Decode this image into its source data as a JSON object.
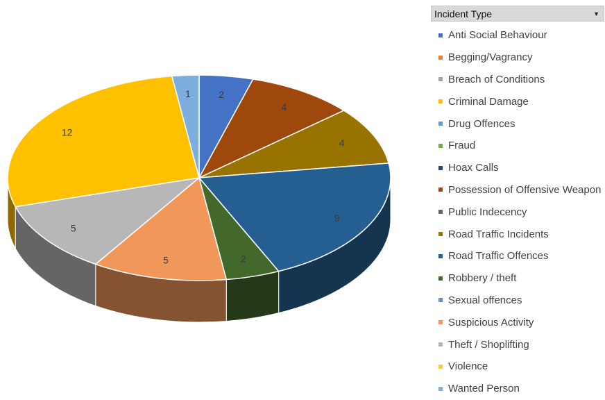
{
  "legend": {
    "title": "Incident Type",
    "items": [
      {
        "label": "Anti Social Behaviour",
        "color": "#4472c4"
      },
      {
        "label": "Begging/Vagrancy",
        "color": "#ed7d31"
      },
      {
        "label": "Breach of Conditions",
        "color": "#a5a5a5"
      },
      {
        "label": "Criminal Damage",
        "color": "#ffc000"
      },
      {
        "label": "Drug Offences",
        "color": "#5b9bd5"
      },
      {
        "label": "Fraud",
        "color": "#70ad47"
      },
      {
        "label": "Hoax Calls",
        "color": "#264478"
      },
      {
        "label": "Possession of Offensive Weapon",
        "color": "#9e480e"
      },
      {
        "label": "Public Indecency",
        "color": "#636363"
      },
      {
        "label": "Road Traffic Incidents",
        "color": "#997300"
      },
      {
        "label": "Road Traffic Offences",
        "color": "#255e91"
      },
      {
        "label": "Robbery / theft",
        "color": "#43682b"
      },
      {
        "label": "Sexual offences",
        "color": "#698ed0"
      },
      {
        "label": "Suspicious Activity",
        "color": "#f1975a"
      },
      {
        "label": "Theft / Shoplifting",
        "color": "#b7b7b7"
      },
      {
        "label": "Violence",
        "color": "#ffcd33"
      },
      {
        "label": "Wanted Person",
        "color": "#7cafdd"
      }
    ]
  },
  "chart_data": {
    "type": "pie",
    "style": "3d",
    "categories": [
      "Anti Social Behaviour",
      "Possession of Offensive Weapon",
      "Road Traffic Incidents",
      "Road Traffic Offences",
      "Robbery / theft",
      "Suspicious Activity",
      "Theft / Shoplifting",
      "Violence",
      "Wanted Person"
    ],
    "values": [
      2,
      4,
      4,
      9,
      2,
      5,
      5,
      12,
      1
    ],
    "colors": [
      "#4472c4",
      "#9e480e",
      "#997300",
      "#255e91",
      "#43682b",
      "#f1975a",
      "#b7b7b7",
      "#ffc000",
      "#7cafdd"
    ],
    "data_labels": [
      "2",
      "4",
      "4",
      "9",
      "2",
      "5",
      "5",
      "12",
      "1"
    ],
    "legend_placement": "right"
  }
}
